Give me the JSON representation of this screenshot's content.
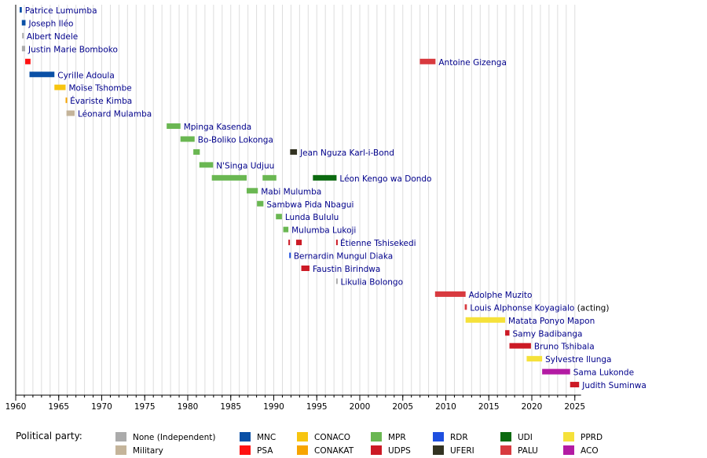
{
  "chart_data": {
    "type": "timeline",
    "xlim": [
      1960,
      2027
    ],
    "x_ticks": [
      1960,
      1965,
      1970,
      1975,
      1980,
      1985,
      1990,
      1995,
      2000,
      2005,
      2010,
      2015,
      2020,
      2025
    ],
    "grid": "vertical-yearly",
    "rows": [
      {
        "label": "Patrice Lumumba",
        "spans": [
          {
            "start": 1960.46,
            "end": 1960.71,
            "party": "MNC"
          }
        ]
      },
      {
        "label": "Joseph Iléo",
        "spans": [
          {
            "start": 1960.71,
            "end": 1961.14,
            "party": "MNC"
          }
        ]
      },
      {
        "label": "Albert Ndele",
        "spans": [
          {
            "start": 1960.75,
            "end": 1960.9,
            "party": "None (Independent)"
          }
        ]
      },
      {
        "label": "Justin Marie Bomboko",
        "spans": [
          {
            "start": 1960.72,
            "end": 1961.1,
            "party": "None (Independent)"
          }
        ]
      },
      {
        "label": "Antoine Gizenga",
        "spans": [
          {
            "start": 1961.1,
            "end": 1961.72,
            "party": "PSA"
          },
          {
            "start": 2006.98,
            "end": 2008.8,
            "party": "PALU"
          }
        ]
      },
      {
        "label": "Cyrille Adoula",
        "spans": [
          {
            "start": 1961.6,
            "end": 1964.5,
            "party": "MNC"
          }
        ]
      },
      {
        "label": "Moïse Tshombe",
        "spans": [
          {
            "start": 1964.5,
            "end": 1965.8,
            "party": "CONACO"
          }
        ]
      },
      {
        "label": "Évariste Kimba",
        "spans": [
          {
            "start": 1965.8,
            "end": 1965.95,
            "party": "CONAKAT"
          }
        ]
      },
      {
        "label": "Léonard Mulamba",
        "spans": [
          {
            "start": 1965.9,
            "end": 1966.85,
            "party": "Military"
          }
        ]
      },
      {
        "label": "Mpinga Kasenda",
        "spans": [
          {
            "start": 1977.55,
            "end": 1979.15,
            "party": "MPR"
          }
        ]
      },
      {
        "label": "Bo-Boliko Lokonga",
        "spans": [
          {
            "start": 1979.15,
            "end": 1980.8,
            "party": "MPR"
          }
        ]
      },
      {
        "label": "Jean Nguza Karl-i-Bond",
        "spans": [
          {
            "start": 1980.65,
            "end": 1981.4,
            "party": "MPR"
          },
          {
            "start": 1991.9,
            "end": 1992.7,
            "party": "UFERI"
          }
        ]
      },
      {
        "label": "N'Singa Udjuu",
        "spans": [
          {
            "start": 1981.35,
            "end": 1982.95,
            "party": "MPR"
          }
        ]
      },
      {
        "label": "Léon Kengo wa Dondo",
        "spans": [
          {
            "start": 1982.8,
            "end": 1986.85,
            "party": "MPR"
          },
          {
            "start": 1988.7,
            "end": 1990.3,
            "party": "MPR"
          },
          {
            "start": 1994.55,
            "end": 1997.3,
            "party": "UDI"
          }
        ]
      },
      {
        "label": "Mabi Mulumba",
        "spans": [
          {
            "start": 1986.85,
            "end": 1988.15,
            "party": "MPR"
          }
        ]
      },
      {
        "label": "Sambwa Pida Nbagui",
        "spans": [
          {
            "start": 1988.05,
            "end": 1988.8,
            "party": "MPR"
          }
        ]
      },
      {
        "label": "Lunda Bululu",
        "spans": [
          {
            "start": 1990.25,
            "end": 1990.95,
            "party": "MPR"
          }
        ]
      },
      {
        "label": "Mulumba Lukoji",
        "spans": [
          {
            "start": 1991.1,
            "end": 1991.7,
            "party": "MPR"
          }
        ]
      },
      {
        "label": "Étienne Tshisekedi",
        "spans": [
          {
            "start": 1991.7,
            "end": 1991.85,
            "party": "UDPS"
          },
          {
            "start": 1992.6,
            "end": 1993.25,
            "party": "UDPS"
          },
          {
            "start": 1997.25,
            "end": 1997.35,
            "party": "UDPS"
          }
        ]
      },
      {
        "label": "Bernardin Mungul Diaka",
        "spans": [
          {
            "start": 1991.8,
            "end": 1991.95,
            "party": "RDR"
          }
        ]
      },
      {
        "label": "Faustin Birindwa",
        "spans": [
          {
            "start": 1993.2,
            "end": 1994.15,
            "party": "UDPS"
          }
        ]
      },
      {
        "label": "Likulia Bolongo",
        "spans": [
          {
            "start": 1997.25,
            "end": 1997.4,
            "party": "None (Independent)"
          }
        ]
      },
      {
        "label": "Adolphe Muzito",
        "spans": [
          {
            "start": 2008.75,
            "end": 2012.3,
            "party": "PALU"
          }
        ]
      },
      {
        "label": "Louis Alphonse Koyagialo",
        "suffix": "(acting)",
        "spans": [
          {
            "start": 2012.2,
            "end": 2012.45,
            "party": "PALU"
          }
        ]
      },
      {
        "label": "Matata Ponyo Mapon",
        "spans": [
          {
            "start": 2012.3,
            "end": 2016.9,
            "party": "PPRD"
          }
        ]
      },
      {
        "label": "Samy Badibanga",
        "spans": [
          {
            "start": 2016.9,
            "end": 2017.4,
            "party": "UDPS"
          }
        ]
      },
      {
        "label": "Bruno Tshibala",
        "spans": [
          {
            "start": 2017.4,
            "end": 2019.9,
            "party": "UDPS"
          }
        ]
      },
      {
        "label": "Sylvestre Ilunga",
        "spans": [
          {
            "start": 2019.4,
            "end": 2021.2,
            "party": "PPRD"
          }
        ]
      },
      {
        "label": "Sama Lukonde",
        "spans": [
          {
            "start": 2021.2,
            "end": 2024.45,
            "party": "ACO"
          }
        ]
      },
      {
        "label": "Judith Suminwa",
        "spans": [
          {
            "start": 2024.45,
            "end": 2025.5,
            "party": "UDPS"
          }
        ]
      }
    ]
  },
  "legend": {
    "title": "Political party:",
    "items": [
      {
        "name": "None (Independent)",
        "color": "#ababab"
      },
      {
        "name": "Military",
        "color": "#c4b49a"
      },
      {
        "name": "MNC",
        "color": "#0a50a6"
      },
      {
        "name": "PSA",
        "color": "#ff1111"
      },
      {
        "name": "CONACO",
        "color": "#f7c510"
      },
      {
        "name": "CONAKAT",
        "color": "#f7a500"
      },
      {
        "name": "MPR",
        "color": "#6ab752"
      },
      {
        "name": "UDPS",
        "color": "#cc1a25"
      },
      {
        "name": "RDR",
        "color": "#1e4fe0"
      },
      {
        "name": "UFERI",
        "color": "#333322"
      },
      {
        "name": "UDI",
        "color": "#0c6a10"
      },
      {
        "name": "PALU",
        "color": "#d83a3f"
      },
      {
        "name": "PPRD",
        "color": "#f5e13a"
      },
      {
        "name": "ACO",
        "color": "#b31ba3"
      }
    ]
  },
  "colors": {
    "label": "#00008b",
    "suffix": "#000000",
    "grid": "#dddddd",
    "axis": "#000000"
  }
}
